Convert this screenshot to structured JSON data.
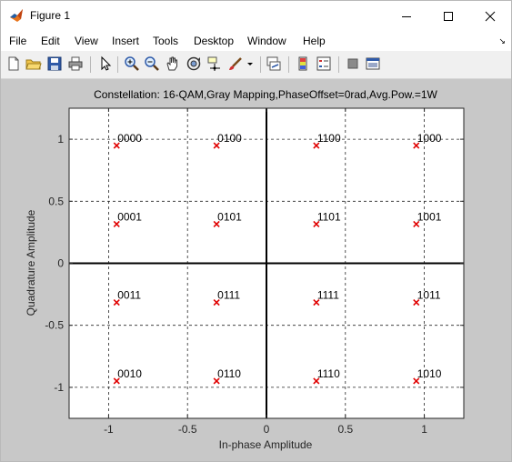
{
  "window": {
    "title": "Figure 1"
  },
  "menu": {
    "items": [
      "File",
      "Edit",
      "View",
      "Insert",
      "Tools",
      "Desktop",
      "Window",
      "Help"
    ]
  },
  "toolbar": {
    "icons": [
      "new-figure-icon",
      "open-file-icon",
      "save-icon",
      "print-icon",
      "pointer-icon",
      "zoom-in-icon",
      "zoom-out-icon",
      "pan-icon",
      "rotate-3d-icon",
      "data-cursor-icon",
      "brush-icon",
      "brush-dropdown-icon",
      "link-plot-icon",
      "insert-colorbar-icon",
      "insert-legend-icon",
      "hide-plot-tools-icon",
      "show-plot-tools-icon"
    ]
  },
  "colors": {
    "marker": "#e00000",
    "grid": "#262626",
    "figure_bg": "#c8c8c8",
    "axes_bg": "#ffffff"
  },
  "chart_data": {
    "type": "scatter",
    "title": "Constellation: 16-QAM,Gray Mapping,PhaseOffset=0rad,Avg.Pow.=1W",
    "xlabel": "In-phase Amplitude",
    "ylabel": "Quadrature Amplitude",
    "xlim": [
      -1.25,
      1.25
    ],
    "ylim": [
      -1.25,
      1.25
    ],
    "xticks": [
      -1,
      -0.5,
      0,
      0.5,
      1
    ],
    "xtick_labels": [
      "-1",
      "-0.5",
      "0",
      "0.5",
      "1"
    ],
    "yticks": [
      -1,
      -0.5,
      0,
      0.5,
      1
    ],
    "ytick_labels": [
      "-1",
      "-0.5",
      "0",
      "0.5",
      "1"
    ],
    "grid": true,
    "marker": "x",
    "points": [
      {
        "x": -0.949,
        "y": 0.949,
        "label": "0000"
      },
      {
        "x": -0.316,
        "y": 0.949,
        "label": "0100"
      },
      {
        "x": 0.316,
        "y": 0.949,
        "label": "1100"
      },
      {
        "x": 0.949,
        "y": 0.949,
        "label": "1000"
      },
      {
        "x": -0.949,
        "y": 0.316,
        "label": "0001"
      },
      {
        "x": -0.316,
        "y": 0.316,
        "label": "0101"
      },
      {
        "x": 0.316,
        "y": 0.316,
        "label": "1101"
      },
      {
        "x": 0.949,
        "y": 0.316,
        "label": "1001"
      },
      {
        "x": -0.949,
        "y": -0.316,
        "label": "0011"
      },
      {
        "x": -0.316,
        "y": -0.316,
        "label": "0111"
      },
      {
        "x": 0.316,
        "y": -0.316,
        "label": "1111"
      },
      {
        "x": 0.949,
        "y": -0.316,
        "label": "1011"
      },
      {
        "x": -0.949,
        "y": -0.949,
        "label": "0010"
      },
      {
        "x": -0.316,
        "y": -0.949,
        "label": "0110"
      },
      {
        "x": 0.316,
        "y": -0.949,
        "label": "1110"
      },
      {
        "x": 0.949,
        "y": -0.949,
        "label": "1010"
      }
    ]
  }
}
